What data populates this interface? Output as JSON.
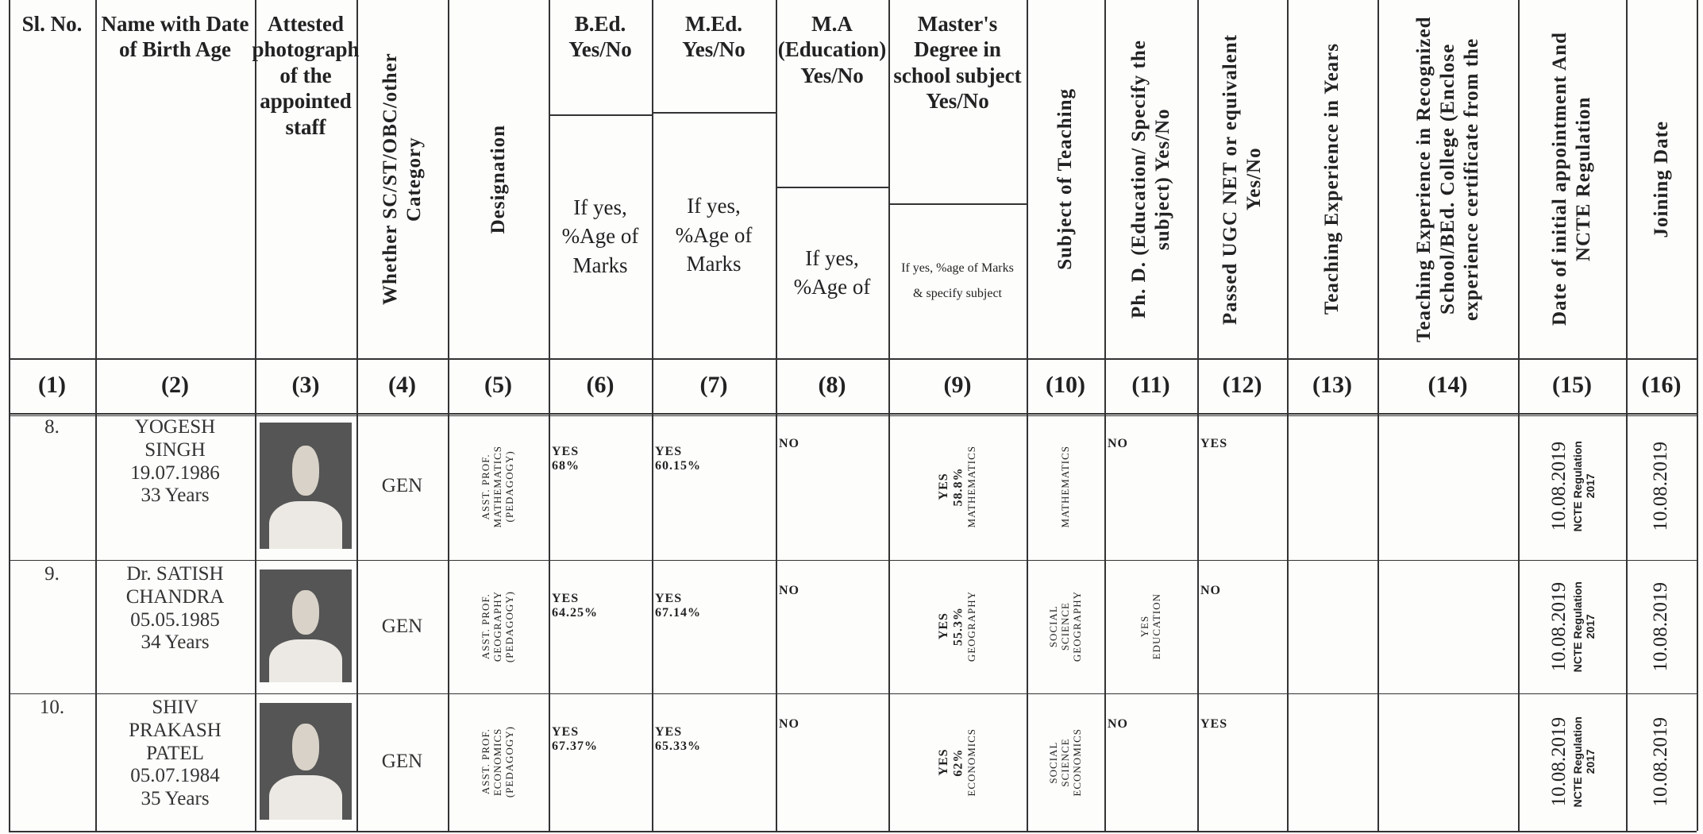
{
  "headers": [
    {
      "text": "Sl. No."
    },
    {
      "text": "Name with Date of Birth Age"
    },
    {
      "text": "Attested photograph of the appointed staff"
    },
    {
      "text": "Whether SC/ST/OBC/other Category"
    },
    {
      "text": "Designation"
    },
    {
      "text": "B.Ed. Yes/No",
      "sub": "If yes, %Age of Marks"
    },
    {
      "text": "M.Ed. Yes/No",
      "sub": "If yes, %Age of Marks"
    },
    {
      "text": "M.A (Education) Yes/No",
      "sub": "If yes, %Age of"
    },
    {
      "text": "Master's Degree in school subject Yes/No",
      "sub": "If yes, %age of Marks & specify subject"
    },
    {
      "text": "Subject of Teaching"
    },
    {
      "text": "Ph. D. (Education/ Specify the subject) Yes/No"
    },
    {
      "text": "Passed UGC NET or equivalent Yes/No"
    },
    {
      "text": "Teaching Experience in Years"
    },
    {
      "text": "Teaching Experience in Recognized School/BEd. College (Enclose experience certificate from the"
    },
    {
      "text": "Date of initial appointment And NCTE Regulation"
    },
    {
      "text": "Joining Date"
    }
  ],
  "column_numbers": [
    "(1)",
    "(2)",
    "(3)",
    "(4)",
    "(5)",
    "(6)",
    "(7)",
    "(8)",
    "(9)",
    "(10)",
    "(11)",
    "(12)",
    "(13)",
    "(14)",
    "(15)",
    "(16)"
  ],
  "rows": [
    {
      "sl": "8.",
      "name": [
        "YOGESH",
        "SINGH",
        "19.07.1986",
        "33 Years"
      ],
      "category": "GEN",
      "designation": [
        "ASST. PROF.",
        "MATHEMATICS",
        "(PEDAGOGY)"
      ],
      "bed": [
        "YES",
        "68%"
      ],
      "med": [
        "YES",
        "60.15%"
      ],
      "ma": [
        "NO"
      ],
      "masters": [
        "YES",
        "58.8%",
        "MATHEMATICS"
      ],
      "subject": [
        "MATHEMATICS"
      ],
      "phd": [
        "NO"
      ],
      "ugc": [
        "YES"
      ],
      "appointment": [
        "10.08.2019",
        "NCTE Regulation",
        "2017"
      ],
      "joining": [
        "10.08.2019"
      ]
    },
    {
      "sl": "9.",
      "name": [
        "Dr. SATISH",
        "CHANDRA",
        "05.05.1985",
        "34 Years"
      ],
      "category": "GEN",
      "designation": [
        "ASST. PROF.",
        "GEOGRAPHY",
        "(PEDAGOGY)"
      ],
      "bed": [
        "YES",
        "64.25%"
      ],
      "med": [
        "YES",
        "67.14%"
      ],
      "ma": [
        "NO"
      ],
      "masters": [
        "YES",
        "55.3%",
        "GEOGRAPHY"
      ],
      "subject": [
        "SOCIAL",
        "SCIENCE",
        "GEOGRAPHY"
      ],
      "phd": [
        "YES",
        "EDUCATION"
      ],
      "ugc": [
        "NO"
      ],
      "appointment": [
        "10.08.2019",
        "NCTE Regulation",
        "2017"
      ],
      "joining": [
        "10.08.2019"
      ]
    },
    {
      "sl": "10.",
      "name": [
        "SHIV",
        "PRAKASH",
        "PATEL",
        "05.07.1984",
        "35 Years"
      ],
      "category": "GEN",
      "designation": [
        "ASST. PROF.",
        "ECONOMICS",
        "(PEDAGOGY)"
      ],
      "bed": [
        "YES",
        "67.37%"
      ],
      "med": [
        "YES",
        "65.33%"
      ],
      "ma": [
        "NO"
      ],
      "masters": [
        "YES",
        "62%",
        "ECONOMICS"
      ],
      "subject": [
        "SOCIAL",
        "SCIENCE",
        "ECONOMICS"
      ],
      "phd": [
        "NO"
      ],
      "ugc": [
        "YES"
      ],
      "appointment": [
        "10.08.2019",
        "NCTE Regulation",
        "2017"
      ],
      "joining": [
        "10.08.2019"
      ]
    }
  ]
}
